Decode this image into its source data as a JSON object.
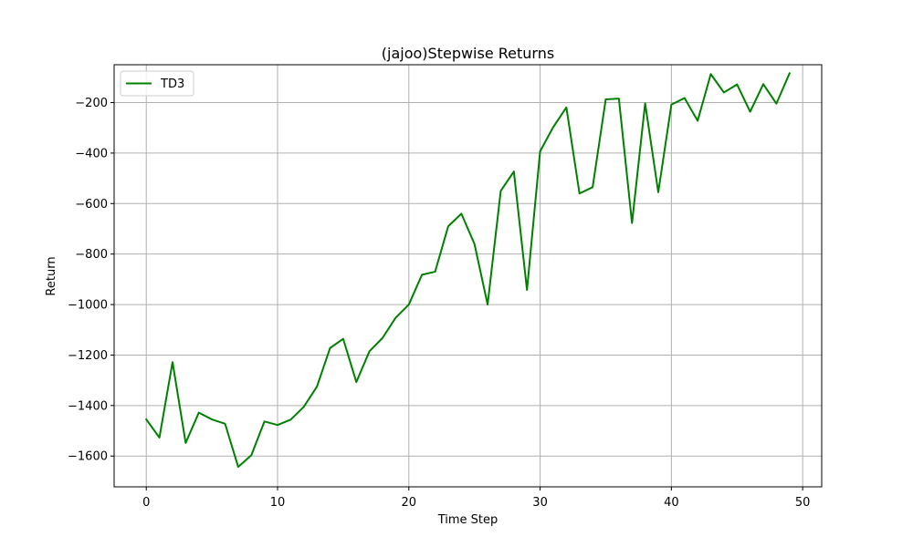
{
  "chart_data": {
    "type": "line",
    "title": "(jajoo)Stepwise Returns",
    "xlabel": "Time Step",
    "ylabel": "Return",
    "xlim": [
      -2.45,
      51.45
    ],
    "ylim": [
      -1722,
      -50
    ],
    "grid": true,
    "legend_position": "top-left",
    "x_ticks": [
      0,
      10,
      20,
      30,
      40,
      50
    ],
    "y_ticks": [
      -1600,
      -1400,
      -1200,
      -1000,
      -800,
      -600,
      -400,
      -200
    ],
    "x_tick_labels": [
      "0",
      "10",
      "20",
      "30",
      "40",
      "50"
    ],
    "y_tick_labels": [
      "−1600",
      "−1400",
      "−1200",
      "−1000",
      "−800",
      "−600",
      "−400",
      "−200"
    ],
    "x": [
      0,
      1,
      2,
      3,
      4,
      5,
      6,
      7,
      8,
      9,
      10,
      11,
      12,
      13,
      14,
      15,
      16,
      17,
      18,
      19,
      20,
      21,
      22,
      23,
      24,
      25,
      26,
      27,
      28,
      29,
      30,
      31,
      32,
      33,
      34,
      35,
      36,
      37,
      38,
      39,
      40,
      41,
      42,
      43,
      44,
      45,
      46,
      47,
      48,
      49
    ],
    "series": [
      {
        "name": "TD3",
        "color": "#008000",
        "values": [
          -1455,
          -1527,
          -1228,
          -1548,
          -1428,
          -1455,
          -1472,
          -1643,
          -1597,
          -1463,
          -1477,
          -1456,
          -1405,
          -1325,
          -1172,
          -1136,
          -1307,
          -1185,
          -1132,
          -1052,
          -1000,
          -882,
          -870,
          -690,
          -640,
          -760,
          -1000,
          -550,
          -473,
          -942,
          -393,
          -297,
          -219,
          -560,
          -535,
          -187,
          -184,
          -677,
          -203,
          -555,
          -208,
          -182,
          -272,
          -87,
          -160,
          -128,
          -236,
          -127,
          -204,
          -84
        ]
      }
    ]
  }
}
